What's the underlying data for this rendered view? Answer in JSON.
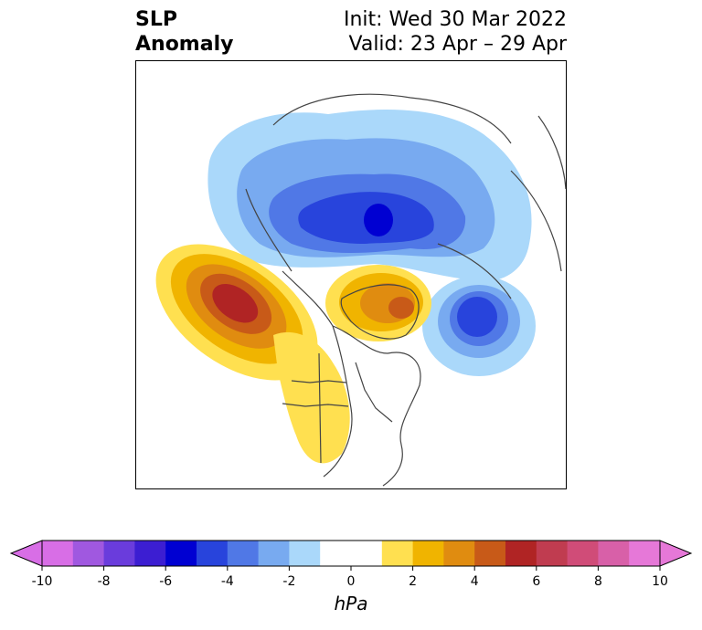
{
  "title": {
    "variable_line1": "SLP",
    "variable_line2": "Anomaly",
    "init_line": "Init: Wed 30 Mar 2022",
    "valid_line": "Valid: 23 Apr – 29 Apr"
  },
  "colorbar": {
    "unit": "hPa",
    "tick_labels": [
      "-10",
      "-8",
      "-6",
      "-4",
      "-2",
      "0",
      "2",
      "4",
      "6",
      "8",
      "10"
    ],
    "colors": [
      "#d86ee6",
      "#a058e0",
      "#6a3cdc",
      "#3c1ed2",
      "#0000d2",
      "#2844dc",
      "#5078e6",
      "#78aaf0",
      "#aad8fa",
      "#ffffff",
      "#ffffff",
      "#ffe050",
      "#f0b400",
      "#e08c10",
      "#c85a18",
      "#b02424",
      "#c03c50",
      "#d04c78",
      "#d860a8",
      "#e678d8"
    ],
    "under_color": "#d86ee6",
    "over_color": "#e678d8"
  },
  "map_features": {
    "negative_centers": [
      "arctic-low",
      "north-atlantic-low"
    ],
    "positive_centers": [
      "north-pacific-high",
      "greenland-high"
    ],
    "land_outline": "coastlines-and-borders"
  }
}
